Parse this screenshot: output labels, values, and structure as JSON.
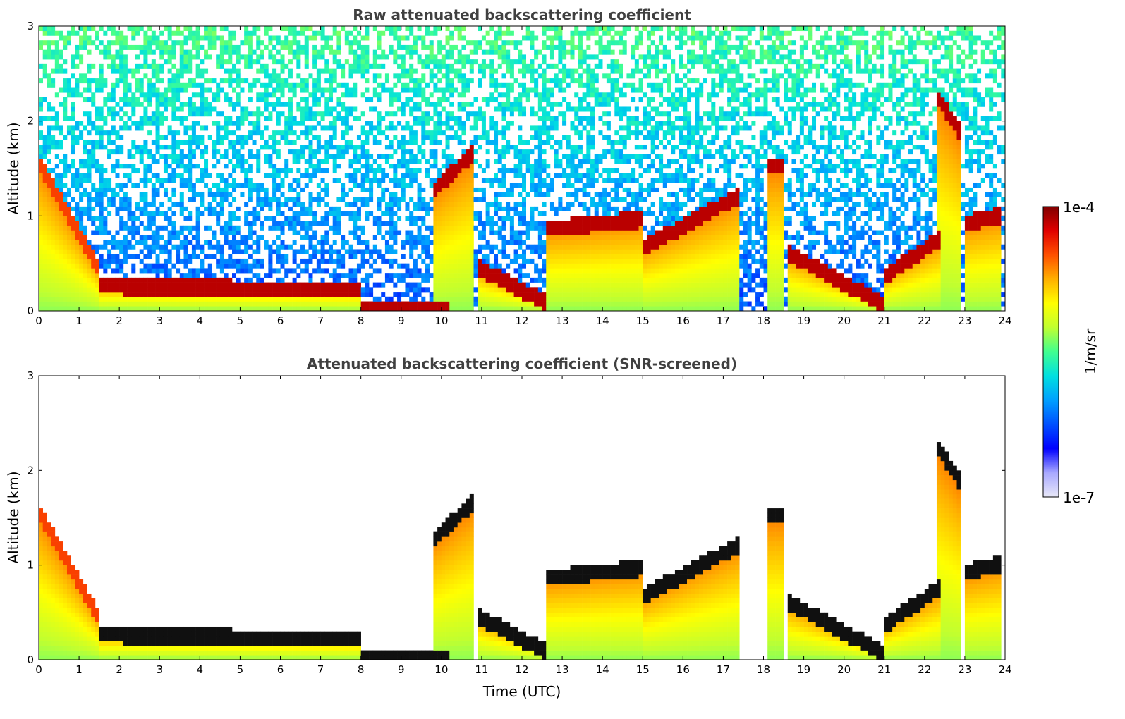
{
  "chart_data": [
    {
      "type": "heatmap",
      "title": "Raw attenuated backscattering coefficient",
      "xlabel": "",
      "ylabel": "Altitude (km)",
      "xlim": [
        0,
        24
      ],
      "ylim": [
        0,
        3
      ],
      "x_ticks": [
        "0",
        "1",
        "2",
        "3",
        "4",
        "5",
        "6",
        "7",
        "8",
        "9",
        "10",
        "11",
        "12",
        "13",
        "14",
        "15",
        "16",
        "17",
        "18",
        "19",
        "20",
        "21",
        "22",
        "23",
        "24"
      ],
      "y_ticks": [
        "0",
        "1",
        "2",
        "3"
      ],
      "screened": false,
      "layers": [
        {
          "t0": 0.0,
          "t1": 1.45,
          "h0": 1.6,
          "h1": 0.5,
          "level": 0.85
        },
        {
          "t0": 1.5,
          "t1": 8.0,
          "h0": 0.3,
          "h1": 0.25,
          "level": 0.95
        },
        {
          "t0": 8.0,
          "t1": 10.2,
          "h0": 0.07,
          "h1": 0.07,
          "level": 0.95
        },
        {
          "t0": 9.8,
          "t1": 10.8,
          "h0": 1.3,
          "h1": 1.7,
          "level": 0.95
        },
        {
          "t0": 10.9,
          "t1": 12.6,
          "h0": 0.5,
          "h1": 0.12,
          "level": 0.95
        },
        {
          "t0": 12.6,
          "t1": 15.0,
          "h0": 0.9,
          "h1": 1.0,
          "level": 0.95
        },
        {
          "t0": 15.0,
          "t1": 17.4,
          "h0": 0.7,
          "h1": 1.25,
          "level": 0.95
        },
        {
          "t0": 18.1,
          "t1": 18.5,
          "h0": 1.55,
          "h1": 1.55,
          "level": 0.95
        },
        {
          "t0": 18.6,
          "t1": 21.0,
          "h0": 0.65,
          "h1": 0.1,
          "level": 0.95
        },
        {
          "t0": 21.0,
          "t1": 22.4,
          "h0": 0.4,
          "h1": 0.8,
          "level": 0.95
        },
        {
          "t0": 22.3,
          "t1": 22.9,
          "h0": 2.3,
          "h1": 1.9,
          "level": 0.95
        },
        {
          "t0": 23.0,
          "t1": 23.9,
          "h0": 0.95,
          "h1": 1.05,
          "level": 0.95
        }
      ]
    },
    {
      "type": "heatmap",
      "title": "Attenuated backscattering coefficient (SNR-screened)",
      "xlabel": "Time (UTC)",
      "ylabel": "Altitude (km)",
      "xlim": [
        0,
        24
      ],
      "ylim": [
        0,
        3
      ],
      "x_ticks": [
        "0",
        "1",
        "2",
        "3",
        "4",
        "5",
        "6",
        "7",
        "8",
        "9",
        "10",
        "11",
        "12",
        "13",
        "14",
        "15",
        "16",
        "17",
        "18",
        "19",
        "20",
        "21",
        "22",
        "23",
        "24"
      ],
      "y_ticks": [
        "0",
        "1",
        "2",
        "3"
      ],
      "screened": true,
      "layers": [
        {
          "t0": 0.0,
          "t1": 1.45,
          "h0": 1.6,
          "h1": 0.5,
          "level": 0.85
        },
        {
          "t0": 1.5,
          "t1": 8.0,
          "h0": 0.3,
          "h1": 0.25,
          "level": 0.95
        },
        {
          "t0": 8.0,
          "t1": 10.2,
          "h0": 0.07,
          "h1": 0.07,
          "level": 0.95
        },
        {
          "t0": 9.8,
          "t1": 10.8,
          "h0": 1.3,
          "h1": 1.7,
          "level": 0.95
        },
        {
          "t0": 10.9,
          "t1": 12.6,
          "h0": 0.5,
          "h1": 0.12,
          "level": 0.95
        },
        {
          "t0": 12.6,
          "t1": 15.0,
          "h0": 0.9,
          "h1": 1.0,
          "level": 0.95
        },
        {
          "t0": 15.0,
          "t1": 17.4,
          "h0": 0.7,
          "h1": 1.25,
          "level": 0.95
        },
        {
          "t0": 18.1,
          "t1": 18.5,
          "h0": 1.55,
          "h1": 1.55,
          "level": 0.95
        },
        {
          "t0": 18.6,
          "t1": 21.0,
          "h0": 0.65,
          "h1": 0.1,
          "level": 0.95
        },
        {
          "t0": 21.0,
          "t1": 22.4,
          "h0": 0.4,
          "h1": 0.8,
          "level": 0.95
        },
        {
          "t0": 22.3,
          "t1": 22.9,
          "h0": 2.3,
          "h1": 1.9,
          "level": 0.95
        },
        {
          "t0": 23.0,
          "t1": 23.9,
          "h0": 0.95,
          "h1": 1.05,
          "level": 0.95
        }
      ]
    }
  ],
  "colorbar": {
    "max_label": "1e-4",
    "min_label": "1e-7",
    "label": "1/m/sr",
    "colors": [
      "#e8e8f8",
      "#a8a8ff",
      "#0000ff",
      "#0050ff",
      "#00a0ff",
      "#00e0e0",
      "#40ff90",
      "#c0ff30",
      "#ffff00",
      "#ffb000",
      "#ff5000",
      "#e00000",
      "#800000"
    ]
  }
}
